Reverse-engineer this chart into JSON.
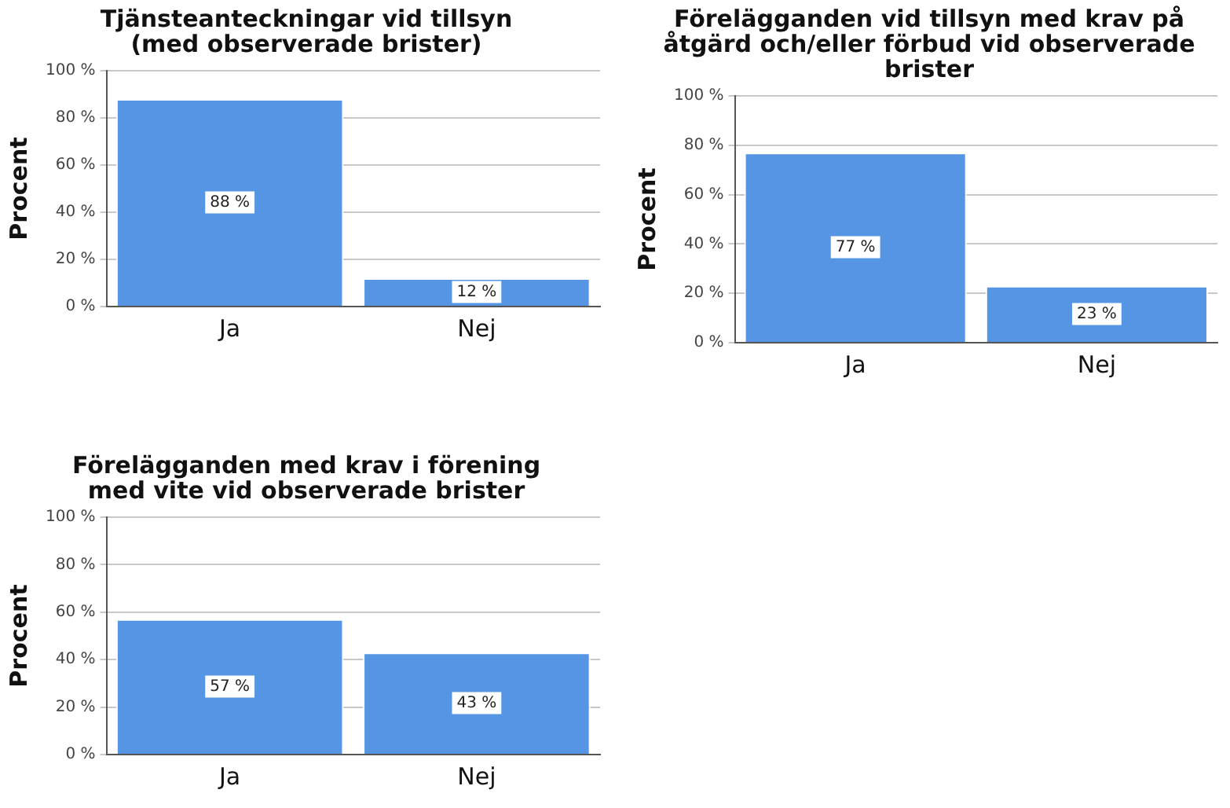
{
  "chart_data": [
    {
      "type": "bar",
      "title": "Tjänsteanteckningar vid tillsyn (med observerade brister)",
      "ylabel": "Procent",
      "categories": [
        "Ja",
        "Nej"
      ],
      "values": [
        88,
        12
      ],
      "value_labels": [
        "88 %",
        "12 %"
      ],
      "color": "#5595e3",
      "ylim": [
        0,
        100
      ],
      "yticks": [
        {
          "value": 0,
          "label": "0 %"
        },
        {
          "value": 20,
          "label": "20 %"
        },
        {
          "value": 40,
          "label": "40 %"
        },
        {
          "value": 60,
          "label": "60 %"
        },
        {
          "value": 80,
          "label": "80 %"
        },
        {
          "value": 100,
          "label": "100 %"
        }
      ],
      "grid": "y"
    },
    {
      "type": "bar",
      "title": "Förelägganden vid tillsyn med krav på åtgärd och/eller förbud vid observerade brister",
      "ylabel": "Procent",
      "categories": [
        "Ja",
        "Nej"
      ],
      "values": [
        77,
        23
      ],
      "value_labels": [
        "77 %",
        "23 %"
      ],
      "color": "#5595e3",
      "ylim": [
        0,
        100
      ],
      "yticks": [
        {
          "value": 0,
          "label": "0 %"
        },
        {
          "value": 20,
          "label": "20 %"
        },
        {
          "value": 40,
          "label": "40 %"
        },
        {
          "value": 60,
          "label": "60 %"
        },
        {
          "value": 80,
          "label": "80 %"
        },
        {
          "value": 100,
          "label": "100 %"
        }
      ],
      "grid": "y"
    },
    {
      "type": "bar",
      "title": "Förelägganden med krav i förening med vite vid observerade brister",
      "ylabel": "Procent",
      "categories": [
        "Ja",
        "Nej"
      ],
      "values": [
        57,
        43
      ],
      "value_labels": [
        "57 %",
        "43 %"
      ],
      "color": "#5595e3",
      "ylim": [
        0,
        100
      ],
      "yticks": [
        {
          "value": 0,
          "label": "0 %"
        },
        {
          "value": 20,
          "label": "20 %"
        },
        {
          "value": 40,
          "label": "40 %"
        },
        {
          "value": 60,
          "label": "60 %"
        },
        {
          "value": 80,
          "label": "80 %"
        },
        {
          "value": 100,
          "label": "100 %"
        }
      ],
      "grid": "y"
    }
  ]
}
